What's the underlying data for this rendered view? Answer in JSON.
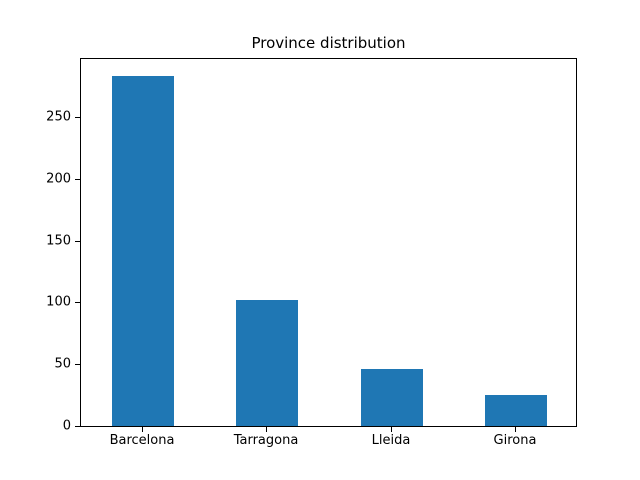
{
  "chart_data": {
    "type": "bar",
    "title": "Province distribution",
    "categories": [
      "Barcelona",
      "Tarragona",
      "Lleida",
      "Girona"
    ],
    "values": [
      283,
      102,
      46,
      25
    ],
    "xlabel": "",
    "ylabel": "",
    "ylim": [
      0,
      297
    ],
    "yticks": [
      0,
      50,
      100,
      150,
      200,
      250
    ],
    "bar_color": "#1f77b4",
    "grid": false,
    "legend": false
  }
}
